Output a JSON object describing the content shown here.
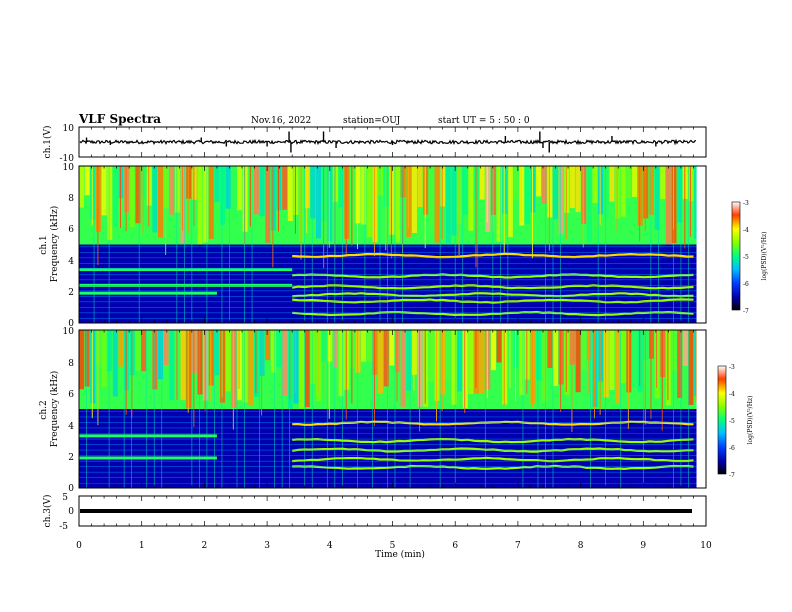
{
  "header": {
    "title": "VLF Spectra",
    "date": "Nov.16, 2022",
    "station": "station=OUJ",
    "start": "start  UT =  5 : 50 : 0"
  },
  "chart_data": [
    {
      "type": "line",
      "panel": "ch1-waveform",
      "ylabel": "ch.1(V)",
      "ylim": [
        -10,
        10
      ],
      "yticks": [
        "10",
        "-10"
      ],
      "xlim": [
        0,
        10
      ],
      "baseline": 0,
      "spikes": [
        {
          "t": 0.12,
          "v": 3
        },
        {
          "t": 0.5,
          "v": -2
        },
        {
          "t": 1.95,
          "v": 3
        },
        {
          "t": 2.35,
          "v": -3
        },
        {
          "t": 3.0,
          "v": -3
        },
        {
          "t": 3.35,
          "v": 7
        },
        {
          "t": 3.38,
          "v": -7
        },
        {
          "t": 3.9,
          "v": 7
        },
        {
          "t": 4.1,
          "v": -4
        },
        {
          "t": 5.0,
          "v": -2
        },
        {
          "t": 6.8,
          "v": 4
        },
        {
          "t": 7.35,
          "v": 7
        },
        {
          "t": 7.4,
          "v": -4
        },
        {
          "t": 7.5,
          "v": -7
        },
        {
          "t": 8.5,
          "v": 4
        },
        {
          "t": 9.2,
          "v": -3
        }
      ]
    },
    {
      "type": "heatmap",
      "panel": "ch1-spectrogram",
      "label": "ch.1",
      "ylabel": "Frequency (kHz)",
      "ylim": [
        0,
        10
      ],
      "yticks": [
        "0",
        "2",
        "4",
        "6",
        "8",
        "10"
      ],
      "xlim": [
        0,
        9.85
      ],
      "colorbar": {
        "label": "log(PSD)(V²/Hz)",
        "range": [
          -7,
          -3
        ],
        "ticks": [
          "-3",
          "-4",
          "-5",
          "-6",
          "-7"
        ]
      },
      "structure": {
        "background_log_psd": -6.5,
        "lines_before_3_4min_khz": [
          1.9,
          3.4,
          2.4
        ],
        "lines_after_3_4min_khz": [
          4.3,
          1.8,
          2.3,
          3.0,
          1.4,
          0.6
        ],
        "band_2khz_ends_min": 2.2,
        "upper_noise_above_khz": 5.0
      }
    },
    {
      "type": "heatmap",
      "panel": "ch2-spectrogram",
      "label": "ch.2",
      "ylabel": "Frequency (kHz)",
      "ylim": [
        0,
        10
      ],
      "yticks": [
        "0",
        "2",
        "4",
        "6",
        "8",
        "10"
      ],
      "xlim": [
        0,
        9.85
      ],
      "colorbar": {
        "label": "log(PSD)(V²/Hz)",
        "range": [
          -7,
          -3
        ],
        "ticks": [
          "-3",
          "-4",
          "-5",
          "-6",
          "-7"
        ]
      },
      "structure": {
        "background_log_psd": -6.5,
        "lines_before_2_2min_khz": [
          1.9,
          3.3
        ],
        "lines_after_3_4min_khz": [
          4.1,
          1.8,
          2.4,
          3.0,
          1.3
        ],
        "upper_noise_above_khz": 5.0
      }
    },
    {
      "type": "line",
      "panel": "ch3-waveform",
      "ylabel": "ch.3(V)",
      "ylim": [
        -5,
        5
      ],
      "yticks": [
        "5",
        "0",
        "-5"
      ],
      "xlim": [
        0,
        10
      ],
      "xlabel": "Time (min)",
      "xticks": [
        "0",
        "1",
        "2",
        "3",
        "4",
        "5",
        "6",
        "7",
        "8",
        "9",
        "10"
      ],
      "baseline": 0
    }
  ]
}
